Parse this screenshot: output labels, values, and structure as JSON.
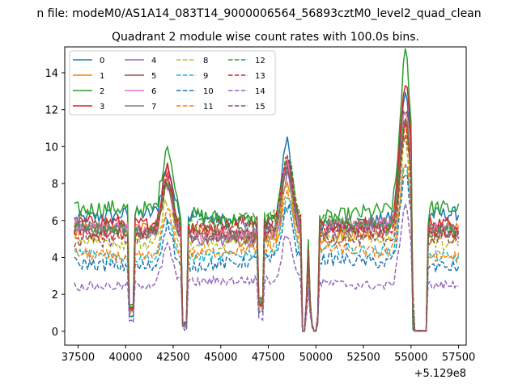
{
  "figure_title": "n file: modeM0/AS1A14_083T14_9000006564_56893cztM0_level2_quad_clean",
  "chart_data": {
    "type": "line",
    "title": "Quadrant 2 module wise count rates with 100.0s bins.",
    "xlabel": "",
    "ylabel": "",
    "x_offset_label": "+5.129e8",
    "xlim": [
      36800,
      57900
    ],
    "ylim": [
      -0.75,
      15.4
    ],
    "x_ticks": [
      37500,
      40000,
      42500,
      45000,
      47500,
      50000,
      52500,
      55000,
      57500
    ],
    "y_ticks": [
      0,
      2,
      4,
      6,
      8,
      10,
      12,
      14
    ],
    "grid": false,
    "legend_placement": "upper-left",
    "legend_columns": 4,
    "x_range": [
      37300,
      57500
    ],
    "bin_width": 100,
    "gap_intervals": [
      [
        49250,
        49400
      ],
      [
        49850,
        50050
      ],
      [
        55200,
        55800
      ]
    ],
    "series": [
      {
        "name": "0",
        "color": "#1f77b4",
        "linestyle": "solid",
        "base": 6.0,
        "noise": 0.4,
        "peaks": [
          [
            42200,
            8.6
          ],
          [
            48500,
            10.6
          ],
          [
            54700,
            12.6
          ]
        ]
      },
      {
        "name": "1",
        "color": "#ff7f0e",
        "linestyle": "solid",
        "base": 5.3,
        "noise": 0.35,
        "peaks": [
          [
            42200,
            7.8
          ],
          [
            48500,
            8.4
          ],
          [
            54700,
            10.8
          ]
        ]
      },
      {
        "name": "2",
        "color": "#2ca02c",
        "linestyle": "solid",
        "base": 6.3,
        "noise": 0.45,
        "peaks": [
          [
            42200,
            9.9
          ],
          [
            48500,
            9.9
          ],
          [
            54700,
            14.6
          ]
        ]
      },
      {
        "name": "3",
        "color": "#d62728",
        "linestyle": "solid",
        "base": 5.6,
        "noise": 0.35,
        "peaks": [
          [
            42200,
            8.8
          ],
          [
            48500,
            9.5
          ],
          [
            54700,
            13.2
          ]
        ]
      },
      {
        "name": "4",
        "color": "#9467bd",
        "linestyle": "solid",
        "base": 5.2,
        "noise": 0.35,
        "peaks": [
          [
            42200,
            8.0
          ],
          [
            48500,
            8.6
          ],
          [
            54700,
            11.2
          ]
        ]
      },
      {
        "name": "5",
        "color": "#8c564b",
        "linestyle": "solid",
        "base": 5.4,
        "noise": 0.35,
        "peaks": [
          [
            42200,
            8.2
          ],
          [
            48500,
            9.0
          ],
          [
            54700,
            11.8
          ]
        ]
      },
      {
        "name": "6",
        "color": "#e377c2",
        "linestyle": "solid",
        "base": 5.5,
        "noise": 0.35,
        "peaks": [
          [
            42200,
            8.4
          ],
          [
            48500,
            9.2
          ],
          [
            54700,
            11.7
          ]
        ]
      },
      {
        "name": "7",
        "color": "#7f7f7f",
        "linestyle": "solid",
        "base": 5.5,
        "noise": 0.35,
        "peaks": [
          [
            42200,
            8.3
          ],
          [
            48500,
            9.1
          ],
          [
            54700,
            11.4
          ]
        ]
      },
      {
        "name": "8",
        "color": "#bcbd22",
        "linestyle": "dashed",
        "base": 4.9,
        "noise": 0.35,
        "peaks": [
          [
            42200,
            7.3
          ],
          [
            48500,
            8.0
          ],
          [
            54700,
            10.2
          ]
        ]
      },
      {
        "name": "9",
        "color": "#17becf",
        "linestyle": "dashed",
        "base": 4.2,
        "noise": 0.3,
        "peaks": [
          [
            42200,
            6.5
          ],
          [
            48500,
            7.1
          ],
          [
            54700,
            9.2
          ]
        ]
      },
      {
        "name": "10",
        "color": "#1f77b4",
        "linestyle": "dashed",
        "base": 3.7,
        "noise": 0.35,
        "peaks": [
          [
            42200,
            6.0
          ],
          [
            48500,
            6.6
          ],
          [
            54700,
            8.6
          ]
        ]
      },
      {
        "name": "11",
        "color": "#ff7f0e",
        "linestyle": "dashed",
        "base": 4.3,
        "noise": 0.3,
        "peaks": [
          [
            42200,
            6.7
          ],
          [
            48500,
            7.3
          ],
          [
            54700,
            9.4
          ]
        ]
      },
      {
        "name": "12",
        "color": "#2ca02c",
        "linestyle": "dashed",
        "base": 5.8,
        "noise": 0.35,
        "peaks": [
          [
            42200,
            8.5
          ],
          [
            48500,
            9.3
          ],
          [
            54700,
            12.0
          ]
        ]
      },
      {
        "name": "13",
        "color": "#d62728",
        "linestyle": "dashed",
        "base": 5.6,
        "noise": 0.35,
        "peaks": [
          [
            42200,
            8.4
          ],
          [
            48500,
            9.2
          ],
          [
            54700,
            11.6
          ]
        ]
      },
      {
        "name": "14",
        "color": "#9467bd",
        "linestyle": "dashed",
        "base": 2.6,
        "noise": 0.25,
        "peaks": [
          [
            42200,
            4.6
          ],
          [
            48500,
            5.2
          ],
          [
            54700,
            7.0
          ]
        ]
      },
      {
        "name": "15",
        "color": "#8c564b",
        "linestyle": "dashed",
        "base": 5.2,
        "noise": 0.35,
        "peaks": [
          [
            42200,
            8.0
          ],
          [
            48500,
            8.8
          ],
          [
            54700,
            11.0
          ]
        ]
      }
    ]
  }
}
